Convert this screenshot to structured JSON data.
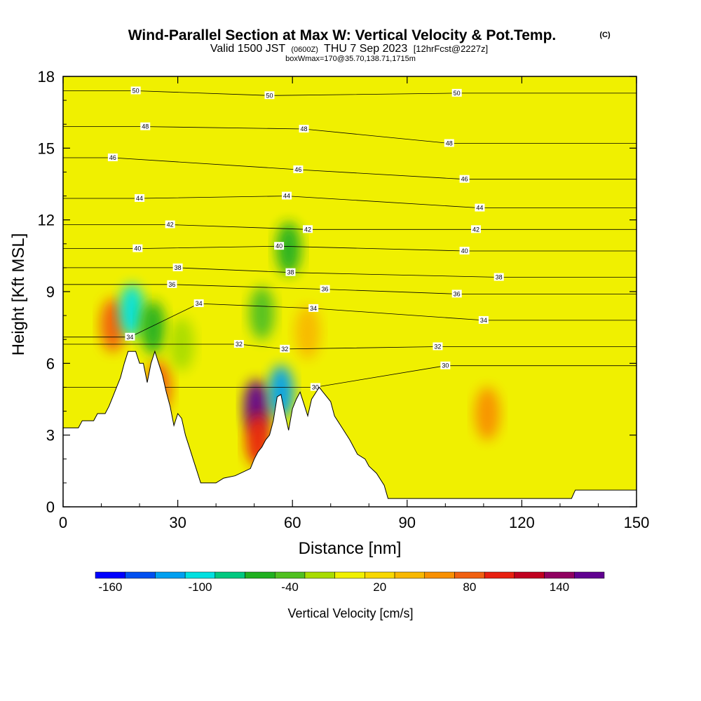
{
  "chart_data": {
    "type": "heatmap",
    "title": "Wind-Parallel Section at Max W: Vertical Velocity & Pot.Temp.",
    "title_mark": "(C)",
    "subtitle_parts": [
      "Valid 1500 JST",
      "(0600Z)",
      "THU 7 Sep 2023",
      "[12hrFcst@2227z]"
    ],
    "subtitle2": "boxWmax=170@35.70,138.71,1715m",
    "xlabel": "Distance [nm]",
    "ylabel": "Height [Kft MSL]",
    "xlim": [
      0,
      150
    ],
    "ylim": [
      0,
      18
    ],
    "x_ticks": [
      0,
      30,
      60,
      90,
      120,
      150
    ],
    "y_ticks": [
      0,
      3,
      6,
      9,
      12,
      15,
      18
    ],
    "x_tick_labels": [
      "0",
      "30",
      "60",
      "90",
      "120",
      "150"
    ],
    "y_tick_labels": [
      "0",
      "3",
      "6",
      "9",
      "12",
      "15",
      "18"
    ],
    "colorbar": {
      "label": "Vertical Velocity [cm/s]",
      "min": -170,
      "max": 170,
      "step": 20,
      "tick_values": [
        -160,
        -100,
        -40,
        20,
        80,
        140
      ],
      "tick_labels": [
        "-160",
        "-100",
        "-40",
        "20",
        "80",
        "140"
      ],
      "colors": [
        "#0000ff",
        "#0050f0",
        "#00a0f0",
        "#00e0e0",
        "#00c880",
        "#20b020",
        "#50c020",
        "#a8dc00",
        "#f0f000",
        "#f8d800",
        "#f8b800",
        "#f89000",
        "#f06010",
        "#e82010",
        "#c00020",
        "#900060",
        "#600090"
      ]
    },
    "background_w_cms": 0,
    "theta_contour_labels": [
      {
        "value": "50",
        "x": 19,
        "y": 17.4
      },
      {
        "value": "50",
        "x": 54,
        "y": 17.2
      },
      {
        "value": "50",
        "x": 103,
        "y": 17.3
      },
      {
        "value": "48",
        "x": 21.5,
        "y": 15.9
      },
      {
        "value": "48",
        "x": 63,
        "y": 15.8
      },
      {
        "value": "48",
        "x": 101,
        "y": 15.2
      },
      {
        "value": "46",
        "x": 13,
        "y": 14.6
      },
      {
        "value": "46",
        "x": 61.5,
        "y": 14.1
      },
      {
        "value": "46",
        "x": 105,
        "y": 13.7
      },
      {
        "value": "44",
        "x": 20,
        "y": 12.9
      },
      {
        "value": "44",
        "x": 58.5,
        "y": 13.0
      },
      {
        "value": "44",
        "x": 109,
        "y": 12.5
      },
      {
        "value": "42",
        "x": 28,
        "y": 11.8
      },
      {
        "value": "42",
        "x": 64,
        "y": 11.6
      },
      {
        "value": "42",
        "x": 108,
        "y": 11.6
      },
      {
        "value": "40",
        "x": 19.5,
        "y": 10.8
      },
      {
        "value": "40",
        "x": 56.5,
        "y": 10.9
      },
      {
        "value": "40",
        "x": 105,
        "y": 10.7
      },
      {
        "value": "38",
        "x": 30,
        "y": 10.0
      },
      {
        "value": "38",
        "x": 59.5,
        "y": 9.8
      },
      {
        "value": "38",
        "x": 114,
        "y": 9.6
      },
      {
        "value": "36",
        "x": 28.5,
        "y": 9.3
      },
      {
        "value": "36",
        "x": 68.5,
        "y": 9.1
      },
      {
        "value": "36",
        "x": 103,
        "y": 8.9
      },
      {
        "value": "34",
        "x": 35.5,
        "y": 8.5
      },
      {
        "value": "34",
        "x": 65.5,
        "y": 8.3
      },
      {
        "value": "34",
        "x": 110,
        "y": 7.8
      },
      {
        "value": "34",
        "x": 17.5,
        "y": 7.1
      },
      {
        "value": "32",
        "x": 46,
        "y": 6.8
      },
      {
        "value": "32",
        "x": 58,
        "y": 6.6
      },
      {
        "value": "32",
        "x": 98,
        "y": 6.7
      },
      {
        "value": "30",
        "x": 66,
        "y": 5.0
      },
      {
        "value": "30",
        "x": 100,
        "y": 5.9
      }
    ],
    "w_features": [
      {
        "x": 50.5,
        "y": 4.2,
        "value": 165
      },
      {
        "x": 51,
        "y": 2.8,
        "value": 100
      },
      {
        "x": 13,
        "y": 7.6,
        "value": 70
      },
      {
        "x": 25,
        "y": 5.0,
        "value": 80
      },
      {
        "x": 111,
        "y": 3.9,
        "value": 60
      },
      {
        "x": 57,
        "y": 4.8,
        "value": -120
      },
      {
        "x": 18,
        "y": 8.2,
        "value": -100
      },
      {
        "x": 23.5,
        "y": 7.5,
        "value": -60
      },
      {
        "x": 52,
        "y": 8.1,
        "value": -40
      },
      {
        "x": 59,
        "y": 10.8,
        "value": -60
      },
      {
        "x": 31,
        "y": 6.8,
        "value": -30
      },
      {
        "x": 64,
        "y": 7.3,
        "value": 40
      }
    ],
    "terrain_kft": [
      [
        0,
        3.3
      ],
      [
        4,
        3.3
      ],
      [
        5,
        3.6
      ],
      [
        8,
        3.6
      ],
      [
        9,
        3.9
      ],
      [
        11,
        3.9
      ],
      [
        12,
        4.2
      ],
      [
        13,
        4.6
      ],
      [
        14,
        5.0
      ],
      [
        15,
        5.4
      ],
      [
        16,
        6.0
      ],
      [
        17,
        6.5
      ],
      [
        19,
        6.5
      ],
      [
        20,
        6.0
      ],
      [
        21,
        6.0
      ],
      [
        22,
        5.2
      ],
      [
        23,
        6.0
      ],
      [
        24,
        6.5
      ],
      [
        25,
        6.0
      ],
      [
        26,
        5.5
      ],
      [
        27,
        4.8
      ],
      [
        28,
        4.2
      ],
      [
        29,
        3.4
      ],
      [
        30,
        3.9
      ],
      [
        31,
        3.7
      ],
      [
        32,
        3.0
      ],
      [
        33,
        2.5
      ],
      [
        34,
        2.0
      ],
      [
        35,
        1.5
      ],
      [
        36,
        1.0
      ],
      [
        40,
        1.0
      ],
      [
        42,
        1.2
      ],
      [
        45,
        1.3
      ],
      [
        49,
        1.6
      ],
      [
        50,
        2.0
      ],
      [
        51,
        2.3
      ],
      [
        52,
        2.5
      ],
      [
        53,
        2.8
      ],
      [
        54,
        3.0
      ],
      [
        55,
        3.6
      ],
      [
        56,
        4.6
      ],
      [
        57,
        4.7
      ],
      [
        58,
        3.9
      ],
      [
        59,
        3.2
      ],
      [
        60,
        4.1
      ],
      [
        61,
        4.5
      ],
      [
        62,
        4.8
      ],
      [
        63,
        4.3
      ],
      [
        64,
        3.8
      ],
      [
        65,
        4.5
      ],
      [
        67,
        5.0
      ],
      [
        68,
        4.8
      ],
      [
        70,
        4.4
      ],
      [
        71,
        3.8
      ],
      [
        73,
        3.3
      ],
      [
        75,
        2.8
      ],
      [
        77,
        2.2
      ],
      [
        79,
        2.0
      ],
      [
        80,
        1.7
      ],
      [
        82,
        1.4
      ],
      [
        84,
        0.9
      ],
      [
        85,
        0.35
      ],
      [
        100,
        0.35
      ],
      [
        133,
        0.35
      ],
      [
        134,
        0.7
      ],
      [
        150,
        0.7
      ]
    ]
  }
}
